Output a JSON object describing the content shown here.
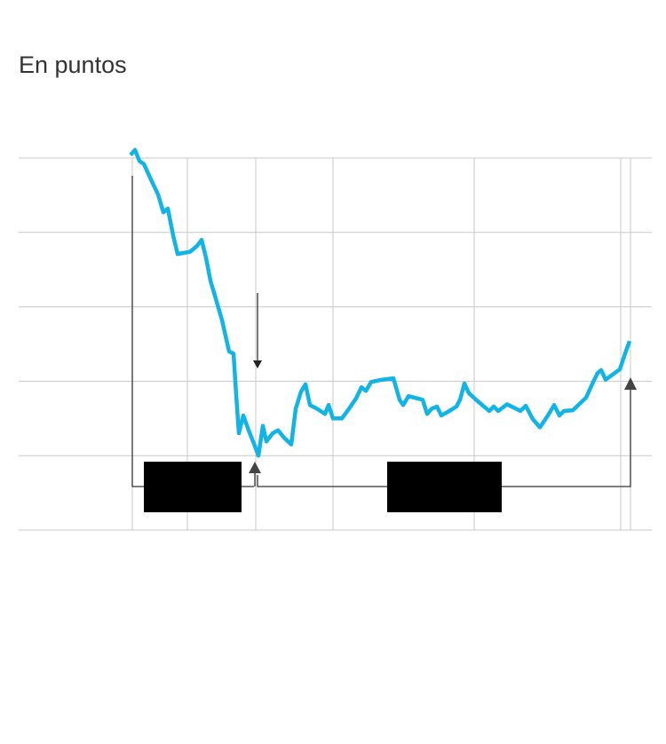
{
  "chart_data": {
    "type": "line",
    "subtitle": "En puntos",
    "x": [
      126,
      131,
      136,
      141,
      149,
      157,
      163,
      168,
      174,
      179,
      193,
      201,
      206,
      211,
      216,
      221,
      229,
      237,
      242,
      245,
      248,
      253,
      259,
      265,
      270,
      275,
      279,
      286,
      292,
      299,
      307,
      312,
      318,
      323,
      328,
      336,
      345,
      349,
      354,
      364,
      372,
      380,
      386,
      391,
      397,
      409,
      422,
      429,
      433,
      439,
      455,
      460,
      465,
      471,
      476,
      485,
      493,
      497,
      502,
      507,
      517,
      530,
      535,
      540,
      550,
      565,
      571,
      579,
      587,
      596,
      603,
      609,
      614,
      624,
      639,
      647,
      652,
      656,
      661,
      677,
      682,
      688
    ],
    "series": [
      {
        "color": "#12b4e6",
        "values": [
          5.04,
          5.11,
          4.96,
          4.92,
          4.71,
          4.51,
          4.27,
          4.32,
          3.96,
          3.71,
          3.74,
          3.82,
          3.9,
          3.66,
          3.35,
          3.15,
          2.82,
          2.4,
          2.37,
          1.81,
          1.3,
          1.54,
          1.34,
          1.16,
          1.0,
          1.4,
          1.19,
          1.3,
          1.34,
          1.24,
          1.15,
          1.63,
          1.86,
          1.96,
          1.68,
          1.63,
          1.56,
          1.68,
          1.5,
          1.5,
          1.63,
          1.77,
          1.92,
          1.87,
          1.99,
          2.02,
          2.04,
          1.75,
          1.68,
          1.8,
          1.75,
          1.56,
          1.63,
          1.66,
          1.54,
          1.6,
          1.66,
          1.75,
          1.97,
          1.84,
          1.73,
          1.6,
          1.66,
          1.6,
          1.69,
          1.6,
          1.67,
          1.49,
          1.38,
          1.54,
          1.68,
          1.54,
          1.6,
          1.61,
          1.78,
          1.99,
          2.11,
          2.15,
          2.02,
          2.16,
          2.34,
          2.54
        ]
      }
    ],
    "xlim": [
      0,
      713
    ],
    "xticks": [
      128,
      190,
      267,
      354,
      513,
      678,
      689
    ],
    "ylim": [
      0,
      5
    ],
    "yticks": [
      0,
      1,
      2,
      3,
      4,
      5
    ],
    "grid": true
  }
}
